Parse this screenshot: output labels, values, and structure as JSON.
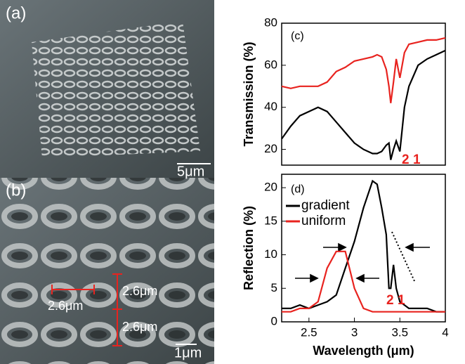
{
  "images": [
    {
      "label": "(a)",
      "scale_bar": "5μm"
    },
    {
      "label": "(b)",
      "scale_bar": "1μm",
      "annotations": [
        "2.6μm",
        "2.6μm",
        "2.6μm"
      ]
    }
  ],
  "chart_data": [
    {
      "type": "line",
      "panel_label": "(c)",
      "ylabel": "Transmission (%)",
      "x": [
        2.2,
        2.3,
        2.4,
        2.5,
        2.6,
        2.7,
        2.8,
        2.9,
        3.0,
        3.1,
        3.2,
        3.25,
        3.3,
        3.35,
        3.38,
        3.4,
        3.43,
        3.46,
        3.5,
        3.55,
        3.6,
        3.7,
        3.8,
        3.9,
        4.0
      ],
      "series": [
        {
          "name": "uniform",
          "color": "#e8231f",
          "values": [
            50,
            49,
            50,
            50,
            50,
            52,
            57,
            59,
            62,
            63,
            64,
            65,
            64,
            58,
            50,
            42,
            52,
            63,
            54,
            66,
            70,
            71,
            72,
            72,
            73
          ]
        },
        {
          "name": "gradient",
          "color": "#000000",
          "values": [
            25,
            31,
            36,
            38,
            40,
            38,
            33,
            28,
            23,
            20,
            18,
            18,
            19,
            22,
            23,
            15,
            20,
            24,
            19,
            40,
            50,
            60,
            63,
            65,
            67
          ]
        }
      ],
      "xlim": [
        2.2,
        4.0
      ],
      "ylim": [
        12.5,
        80
      ],
      "yticks": [
        20,
        40,
        60,
        80
      ],
      "annotations": [
        "2",
        "1"
      ]
    },
    {
      "type": "line",
      "panel_label": "(d)",
      "ylabel": "Reflection (%)",
      "xlabel": "Wavelength (μm)",
      "x": [
        2.2,
        2.3,
        2.4,
        2.5,
        2.6,
        2.7,
        2.8,
        2.9,
        3.0,
        3.1,
        3.2,
        3.25,
        3.3,
        3.35,
        3.38,
        3.4,
        3.43,
        3.46,
        3.5,
        3.55,
        3.6,
        3.7,
        3.8,
        3.9,
        4.0
      ],
      "series": [
        {
          "name": "gradient",
          "color": "#000000",
          "values": [
            2,
            2,
            2.5,
            2,
            2.5,
            3,
            4,
            8,
            12,
            17,
            21,
            20.5,
            17,
            13,
            5,
            5,
            8.5,
            5,
            3,
            2.5,
            2,
            2,
            2,
            1.5,
            1.5
          ]
        },
        {
          "name": "uniform",
          "color": "#e8231f",
          "values": [
            1.5,
            1.5,
            2,
            2,
            3,
            8,
            10.5,
            10.5,
            5,
            2,
            1.5,
            1.5,
            1.5,
            1.5,
            1.5,
            1.5,
            1.5,
            1.5,
            1.5,
            1.5,
            1.5,
            1.5,
            1.5,
            1.5,
            1.5
          ]
        }
      ],
      "xlim": [
        2.2,
        4.0
      ],
      "ylim": [
        0,
        22
      ],
      "xticks": [
        2.5,
        3.0,
        3.5,
        4.0
      ],
      "yticks": [
        0,
        5,
        10,
        15,
        20
      ],
      "legend": "upper left",
      "annotations": [
        "2",
        "1"
      ]
    }
  ]
}
